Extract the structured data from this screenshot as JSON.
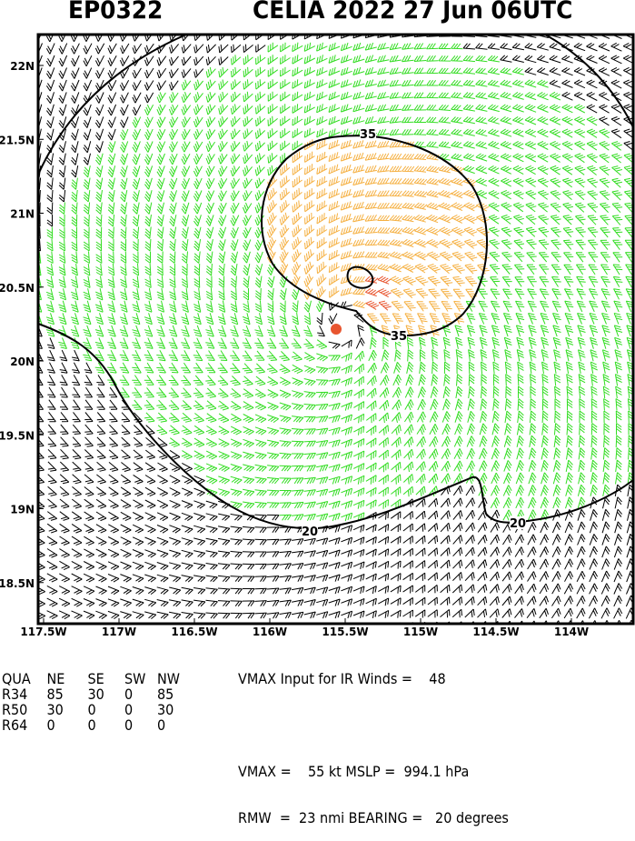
{
  "header": {
    "storm_id": "EP0322",
    "storm_title": "CELIA 2022 27 Jun 06UTC"
  },
  "map": {
    "lat_labels": [
      "22N",
      "21.5N",
      "21N",
      "20.5N",
      "20N",
      "19.5N",
      "19N",
      "18.5N"
    ],
    "lat_values": [
      22,
      21.5,
      21,
      20.5,
      20,
      19.5,
      19,
      18.5
    ],
    "lon_labels": [
      "117.5W",
      "117W",
      "116.5W",
      "116W",
      "115.5W",
      "115W",
      "114.5W",
      "114W"
    ],
    "lon_values": [
      -117.5,
      -117,
      -116.5,
      -116,
      -115.5,
      -115,
      -114.5,
      -114
    ],
    "storm_center": {
      "lon": -115.51,
      "lat": 20.22
    },
    "contour_labels": [
      "35",
      "35",
      "20",
      "20"
    ],
    "colors": {
      "below_34kt": "#000000",
      "34_to_50kt": "#33dd22",
      "50_to_64kt": "#f5b041",
      "above_64kt": "#e8552f",
      "center_marker": "#e8552f"
    }
  },
  "table": {
    "header": [
      "QUA",
      "NE",
      "SE",
      "SW",
      "NW"
    ],
    "rows": [
      [
        "R34",
        "85",
        "30",
        "0",
        "85"
      ],
      [
        "R50",
        "30",
        "0",
        "0",
        "30"
      ],
      [
        "R64",
        "0",
        "0",
        "0",
        "0"
      ]
    ]
  },
  "summary": {
    "line1": "VMAX Input for IR Winds =    48",
    "line3": "VMAX =    55 kt MSLP =  994.1 hPa",
    "line4": "RMW  =  23 nmi BEARING =   20 degrees"
  }
}
